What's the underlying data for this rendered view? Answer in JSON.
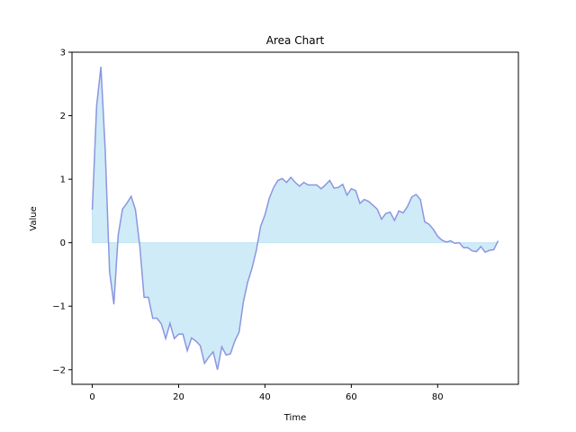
{
  "chart_data": {
    "type": "area",
    "title": "Area Chart",
    "xlabel": "Time",
    "ylabel": "Value",
    "xlim": [
      -4.7,
      98.7
    ],
    "ylim": [
      -2.23,
      3.0
    ],
    "xticks": [
      0,
      20,
      40,
      60,
      80
    ],
    "xtick_labels": [
      "0",
      "20",
      "40",
      "60",
      "80"
    ],
    "yticks": [
      -2,
      -1,
      0,
      1,
      2,
      3
    ],
    "ytick_labels": [
      "−2",
      "−1",
      "0",
      "1",
      "2",
      "3"
    ],
    "grid": false,
    "colors": {
      "line": "#8c96e0",
      "fill": "#87ceeb",
      "fill_opacity": 0.4,
      "axes": "#000000",
      "background": "#ffffff"
    },
    "series": [
      {
        "x": [
          0,
          1,
          2,
          3,
          4,
          5,
          6,
          7,
          8,
          9,
          10,
          11,
          12,
          13,
          14,
          15,
          16,
          17,
          18,
          19,
          20,
          21,
          22,
          23,
          24,
          25,
          26,
          27,
          28,
          29,
          30,
          31,
          32,
          33,
          34,
          35,
          36,
          37,
          38,
          39,
          40,
          41,
          42,
          43,
          44,
          45,
          46,
          47,
          48,
          49,
          50,
          51,
          52,
          53,
          54,
          55,
          56,
          57,
          58,
          59,
          60,
          61,
          62,
          63,
          64,
          65,
          66,
          67,
          68,
          69,
          70,
          71,
          72,
          73,
          74,
          75,
          76,
          77,
          78,
          79,
          80,
          81,
          82,
          83,
          84,
          85,
          86,
          87,
          88,
          89,
          90,
          91,
          92,
          93,
          94
        ],
        "y": [
          0.52,
          2.15,
          2.77,
          1.45,
          -0.45,
          -0.97,
          0.12,
          0.53,
          0.62,
          0.73,
          0.52,
          -0.05,
          -0.86,
          -0.86,
          -1.19,
          -1.19,
          -1.28,
          -1.51,
          -1.27,
          -1.51,
          -1.44,
          -1.44,
          -1.7,
          -1.5,
          -1.55,
          -1.62,
          -1.9,
          -1.8,
          -1.72,
          -2.0,
          -1.64,
          -1.77,
          -1.75,
          -1.55,
          -1.41,
          -0.93,
          -0.62,
          -0.4,
          -0.12,
          0.26,
          0.44,
          0.7,
          0.87,
          0.98,
          1.01,
          0.95,
          1.03,
          0.95,
          0.89,
          0.95,
          0.91,
          0.91,
          0.91,
          0.85,
          0.91,
          0.98,
          0.86,
          0.87,
          0.92,
          0.75,
          0.85,
          0.82,
          0.62,
          0.68,
          0.65,
          0.59,
          0.53,
          0.37,
          0.46,
          0.48,
          0.35,
          0.5,
          0.47,
          0.57,
          0.72,
          0.76,
          0.68,
          0.33,
          0.29,
          0.21,
          0.1,
          0.04,
          0.01,
          0.03,
          -0.01,
          0.0,
          -0.08,
          -0.08,
          -0.13,
          -0.14,
          -0.06,
          -0.15,
          -0.12,
          -0.11,
          0.03
        ]
      }
    ]
  }
}
